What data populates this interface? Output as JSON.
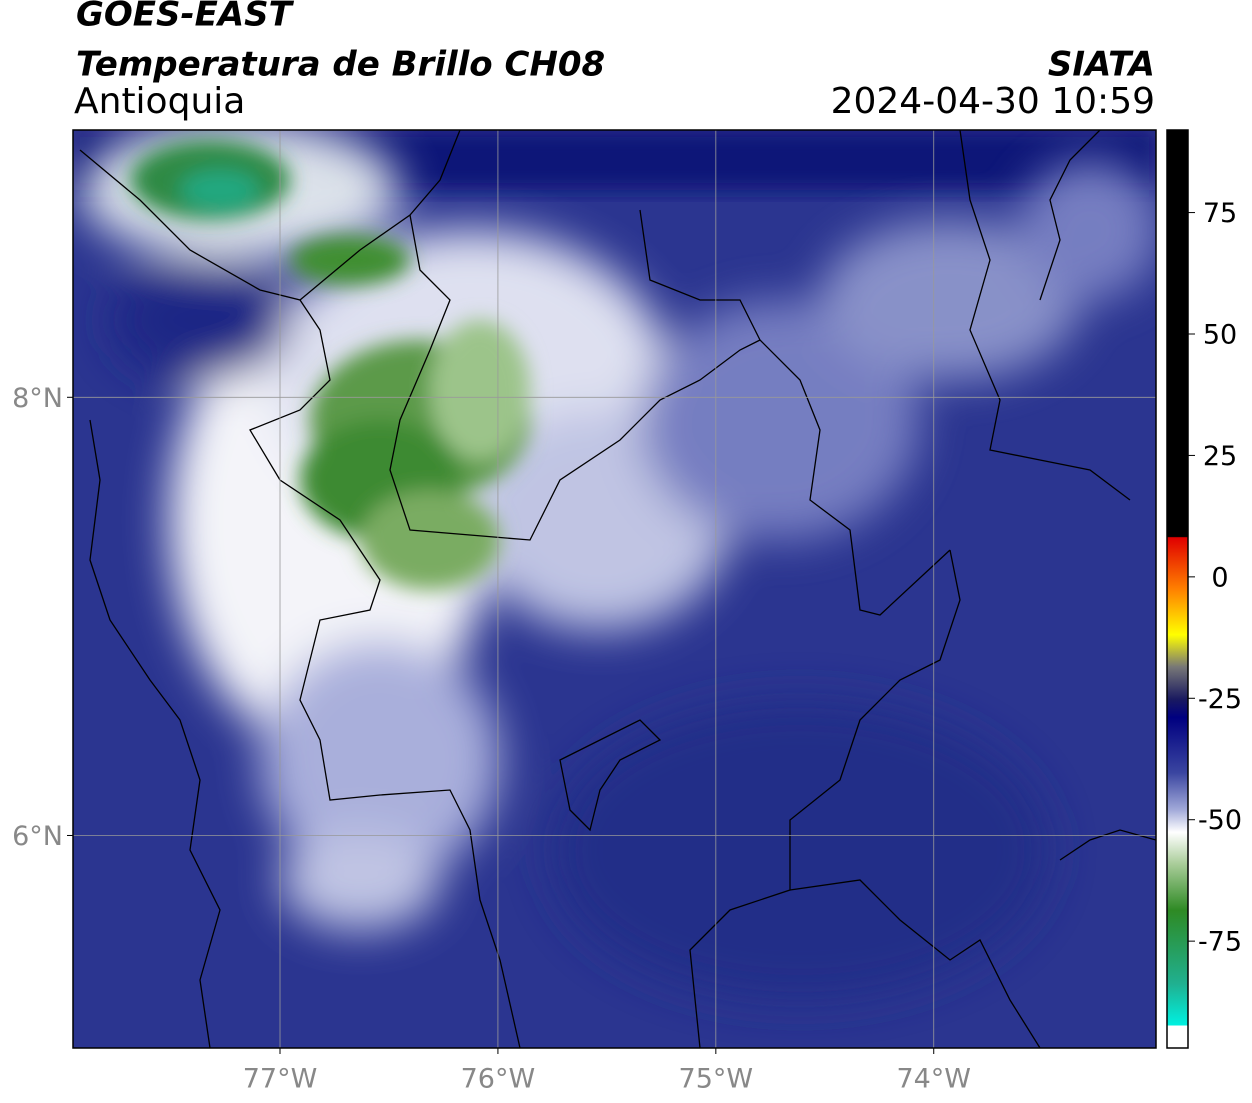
{
  "header": {
    "title": "GOES-EAST",
    "subtitle": "Temperatura de Brillo CH08",
    "region": "Antioquia",
    "source": "SIATA",
    "datetime": "2024-04-30 10:59"
  },
  "map": {
    "xlim": [
      -77.95,
      -72.98
    ],
    "ylim": [
      5.03,
      9.22
    ],
    "xticks": [
      {
        "value": -77,
        "label": "77°W"
      },
      {
        "value": -76,
        "label": "76°W"
      },
      {
        "value": -75,
        "label": "75°W"
      },
      {
        "value": -74,
        "label": "74°W"
      }
    ],
    "yticks": [
      {
        "value": 8,
        "label": "8°N"
      },
      {
        "value": 6,
        "label": "6°N"
      }
    ]
  },
  "colorbar": {
    "lim": [
      -97,
      92
    ],
    "ticks": [
      75,
      50,
      25,
      0,
      -25,
      -50,
      -75
    ]
  }
}
